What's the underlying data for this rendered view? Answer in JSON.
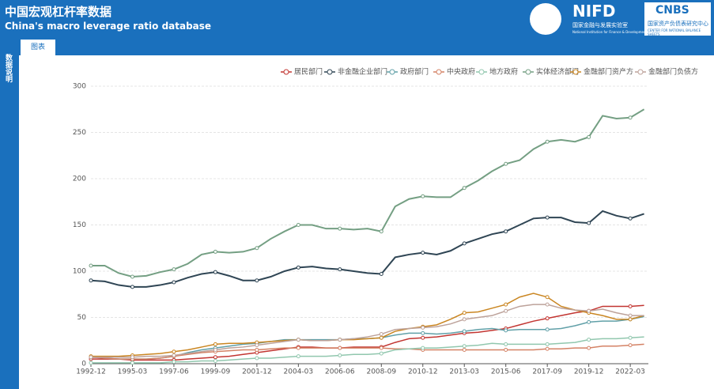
{
  "header": {
    "title": "中国宏观杠杆率数据",
    "subtitle": "China's macro leverage ratio database",
    "logo1": "NIFD",
    "logo1_cn": "国家金融与发展实验室",
    "logo1_en": "National Institution for Finance & Development",
    "logo2": "CNBS",
    "logo2_cn": "国家资产负债表研究中心",
    "logo2_en": "CENTER FOR NATIONAL BALANCE SHEETS"
  },
  "tab": "图表",
  "sidebar": "数据说明",
  "chart_data": {
    "type": "line",
    "categories": [
      "1992-12",
      null,
      null,
      "1995-03",
      null,
      null,
      "1997-06",
      null,
      null,
      "1999-09",
      null,
      null,
      "2001-12",
      null,
      null,
      "2004-03",
      null,
      null,
      "2006-06",
      null,
      null,
      "2008-09",
      null,
      null,
      "2010-12",
      null,
      null,
      "2013-03",
      null,
      null,
      "2015-06",
      null,
      null,
      "2017-09",
      null,
      null,
      "2019-12",
      null,
      null,
      "2022-03",
      null
    ],
    "ylim": [
      0,
      300
    ],
    "yticks": [
      0,
      50,
      100,
      150,
      200,
      250,
      300
    ],
    "grid": true,
    "series": [
      {
        "name": "居民部门",
        "color": "#c23531",
        "values": [
          5,
          5,
          5,
          4,
          4,
          4,
          4,
          5,
          6,
          7,
          8,
          10,
          12,
          14,
          16,
          18,
          18,
          17,
          17,
          18,
          18,
          18,
          23,
          27,
          28,
          29,
          31,
          33,
          34,
          36,
          38,
          42,
          46,
          49,
          52,
          55,
          57,
          62,
          62,
          62,
          63
        ]
      },
      {
        "name": "非金融企业部门",
        "color": "#2f4554",
        "values": [
          90,
          89,
          85,
          83,
          83,
          85,
          88,
          93,
          97,
          99,
          95,
          90,
          90,
          94,
          100,
          104,
          105,
          103,
          102,
          100,
          98,
          97,
          115,
          118,
          120,
          118,
          122,
          130,
          135,
          140,
          143,
          150,
          157,
          158,
          158,
          153,
          152,
          165,
          160,
          157,
          162
        ]
      },
      {
        "name": "政府部门",
        "color": "#61a0a8",
        "values": [
          7,
          6,
          5,
          5,
          5,
          6,
          8,
          12,
          15,
          17,
          19,
          21,
          22,
          24,
          26,
          26,
          26,
          26,
          26,
          27,
          27,
          28,
          31,
          33,
          33,
          32,
          33,
          35,
          37,
          38,
          36,
          37,
          37,
          37,
          38,
          41,
          45,
          46,
          46,
          48,
          51
        ]
      },
      {
        "name": "中央政府",
        "color": "#d48265",
        "values": [
          7,
          6,
          5,
          5,
          5,
          6,
          8,
          10,
          12,
          13,
          14,
          15,
          15,
          16,
          17,
          17,
          17,
          17,
          17,
          17,
          17,
          17,
          16,
          16,
          15,
          15,
          15,
          15,
          15,
          15,
          15,
          15,
          15,
          16,
          16,
          17,
          17,
          19,
          19,
          20,
          21
        ]
      },
      {
        "name": "地方政府",
        "color": "#91c7ae",
        "values": [
          1,
          1,
          1,
          1,
          1,
          1,
          2,
          2,
          3,
          3,
          4,
          5,
          6,
          6,
          7,
          8,
          8,
          8,
          9,
          10,
          10,
          11,
          15,
          16,
          17,
          17,
          18,
          19,
          20,
          22,
          21,
          21,
          21,
          21,
          22,
          23,
          26,
          27,
          27,
          28,
          29
        ]
      },
      {
        "name": "实体经济部门",
        "color": "#749f83",
        "values": [
          106,
          106,
          98,
          94,
          95,
          99,
          102,
          108,
          118,
          121,
          120,
          121,
          125,
          135,
          143,
          150,
          150,
          146,
          146,
          145,
          146,
          143,
          170,
          178,
          181,
          180,
          180,
          190,
          198,
          208,
          216,
          220,
          232,
          240,
          242,
          240,
          245,
          268,
          265,
          266,
          275
        ]
      },
      {
        "name": "金融部门资产方",
        "color": "#ca8622",
        "values": [
          8,
          8,
          8,
          9,
          10,
          11,
          13,
          15,
          18,
          21,
          22,
          22,
          23,
          24,
          25,
          26,
          25,
          25,
          26,
          26,
          27,
          28,
          35,
          38,
          40,
          42,
          48,
          55,
          56,
          60,
          64,
          72,
          76,
          72,
          62,
          58,
          55,
          52,
          48,
          48,
          52
        ]
      },
      {
        "name": "金融部门负债方",
        "color": "#bda29a",
        "values": [
          7,
          7,
          7,
          7,
          8,
          8,
          9,
          11,
          13,
          15,
          17,
          18,
          20,
          22,
          24,
          26,
          25,
          25,
          26,
          27,
          29,
          32,
          37,
          38,
          39,
          40,
          43,
          48,
          50,
          52,
          57,
          62,
          64,
          64,
          60,
          58,
          57,
          59,
          55,
          52,
          52
        ]
      }
    ]
  }
}
